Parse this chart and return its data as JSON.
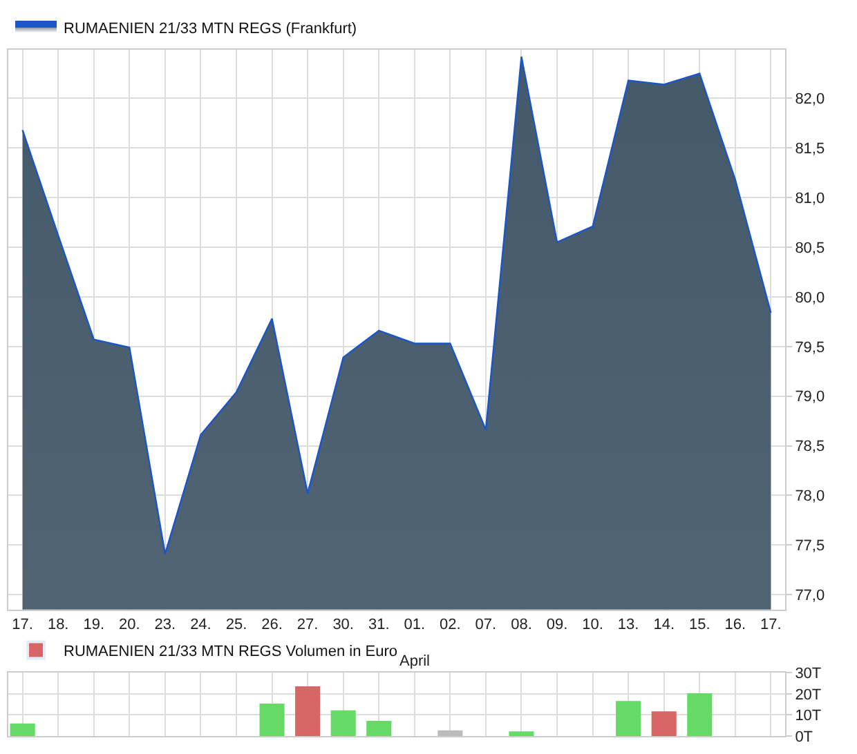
{
  "chart_data": [
    {
      "type": "area",
      "categories": [
        "17.",
        "18.",
        "19.",
        "20.",
        "23.",
        "24.",
        "25.",
        "26.",
        "27.",
        "30.",
        "31.",
        "01.",
        "02.",
        "07.",
        "08.",
        "09.",
        "10.",
        "13.",
        "14.",
        "15.",
        "16.",
        "17."
      ],
      "series": [
        {
          "name": "RUMAENIEN 21/33 MTN REGS (Frankfurt)",
          "color": "#1a56c8",
          "values": [
            81.68,
            80.62,
            79.57,
            79.49,
            77.41,
            78.61,
            79.04,
            79.78,
            78.02,
            79.39,
            79.66,
            79.53,
            79.53,
            78.66,
            82.42,
            80.55,
            80.71,
            82.18,
            82.14,
            82.25,
            81.18,
            79.84
          ]
        }
      ],
      "ylim": [
        76.85,
        82.49
      ],
      "yticks": [
        {
          "value": 77,
          "label": "77,0"
        },
        {
          "value": 77.5,
          "label": "77,5"
        },
        {
          "value": 78,
          "label": "78,0"
        },
        {
          "value": 78.5,
          "label": "78,5"
        },
        {
          "value": 79,
          "label": "79,0"
        },
        {
          "value": 79.5,
          "label": "79,5"
        },
        {
          "value": 80,
          "label": "80,0"
        },
        {
          "value": 80.5,
          "label": "80,5"
        },
        {
          "value": 81,
          "label": "81,0"
        },
        {
          "value": 81.5,
          "label": "81,5"
        },
        {
          "value": 82,
          "label": "82,0"
        }
      ],
      "annotations": [
        {
          "text": "April",
          "x": "01."
        }
      ],
      "grid": true,
      "legend": "top left"
    },
    {
      "type": "bar",
      "categories": [
        null,
        null,
        null,
        null,
        null,
        null,
        null,
        null,
        null,
        null,
        null,
        null,
        null,
        null,
        null,
        null,
        null,
        null,
        null,
        null,
        null,
        null
      ],
      "series": [
        {
          "name": "RUMAENIEN 21/33 MTN REGS Volumen in Euro",
          "color": "#d96666",
          "values": [
            6,
            null,
            null,
            null,
            null,
            null,
            null,
            15.4,
            23.6,
            12.2,
            7.2,
            null,
            2.7,
            null,
            2.2,
            null,
            null,
            16.6,
            11.7,
            20.3,
            null,
            null
          ],
          "colors": [
            "#66d966",
            null,
            null,
            null,
            null,
            null,
            null,
            "#66d966",
            "#d96666",
            "#66d966",
            "#66d966",
            null,
            "#bbbbbb",
            null,
            "#66d966",
            null,
            null,
            "#66d966",
            "#d96666",
            "#66d966",
            null,
            null
          ]
        }
      ],
      "ylim": [
        0,
        30
      ],
      "yticks": [
        {
          "value": 0,
          "label": "0T"
        },
        {
          "value": 10,
          "label": "10T"
        },
        {
          "value": 20,
          "label": "20T"
        },
        {
          "value": 30,
          "label": "30T"
        }
      ],
      "tick_labels": "y",
      "grid": true,
      "legend": "top left"
    }
  ]
}
